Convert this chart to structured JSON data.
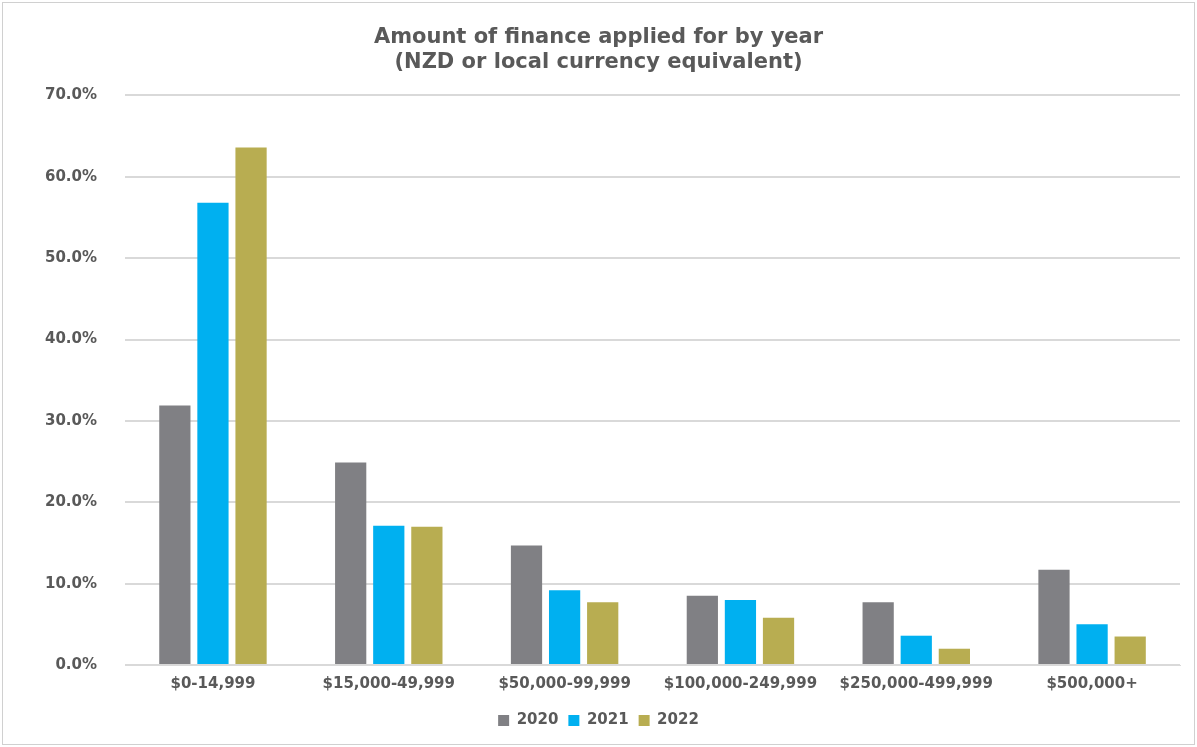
{
  "chart_data": {
    "type": "bar",
    "title": [
      "Amount of finance applied for by year",
      "(NZD or local currency equivalent)"
    ],
    "categories": [
      "$0-14,999",
      "$15,000-49,999",
      "$50,000-99,999",
      "$100,000-249,999",
      "$250,000-499,999",
      "$500,000+"
    ],
    "series": [
      {
        "name": "2020",
        "color": "#808084",
        "values": [
          31.9,
          24.9,
          14.7,
          8.5,
          7.7,
          11.7
        ]
      },
      {
        "name": "2021",
        "color": "#00b0f0",
        "values": [
          56.8,
          17.1,
          9.2,
          8.0,
          3.6,
          5.0
        ]
      },
      {
        "name": "2022",
        "color": "#b8ad51",
        "values": [
          63.6,
          17.0,
          7.7,
          5.8,
          2.0,
          3.5
        ]
      }
    ],
    "ylim": [
      0,
      70
    ],
    "yticks": [
      {
        "value": 0,
        "label": "0.0%"
      },
      {
        "value": 10,
        "label": "10.0%"
      },
      {
        "value": 20,
        "label": "20.0%"
      },
      {
        "value": 30,
        "label": "30.0%"
      },
      {
        "value": 40,
        "label": "40.0%"
      },
      {
        "value": 50,
        "label": "50.0%"
      },
      {
        "value": 60,
        "label": "60.0%"
      },
      {
        "value": 70,
        "label": "70.0%"
      }
    ],
    "grid": "y",
    "legend": "bottom"
  }
}
